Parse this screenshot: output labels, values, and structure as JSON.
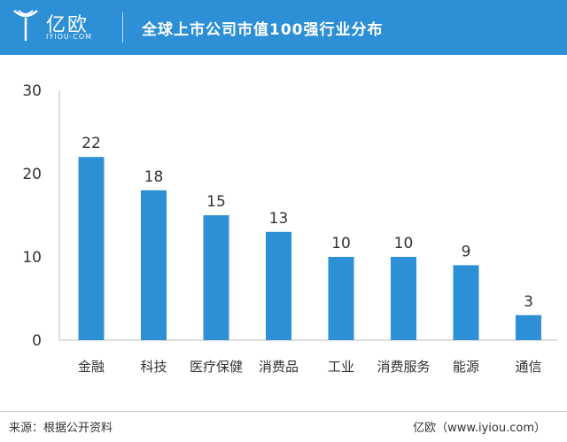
{
  "header": {
    "brand": "亿欧",
    "brand_sub": "IYIOU·COM",
    "title": "全球上市公司市值100强行业分布",
    "bg_color": "#2d8fd6"
  },
  "chart_data": {
    "type": "bar",
    "title": "全球上市公司市值100强行业分布",
    "categories": [
      "金融",
      "科技",
      "医疗保健",
      "消费品",
      "工业",
      "消费服务",
      "能源",
      "通信"
    ],
    "values": [
      22,
      18,
      15,
      13,
      10,
      10,
      9,
      3
    ],
    "ylim": [
      0,
      30
    ],
    "yticks": [
      0,
      10,
      20,
      30
    ],
    "bar_color": "#2d8fd6",
    "grid": false,
    "legend": "none"
  },
  "footer": {
    "source": "来源：根据公开资料",
    "credit": "亿欧（www.iyiou.com）"
  }
}
